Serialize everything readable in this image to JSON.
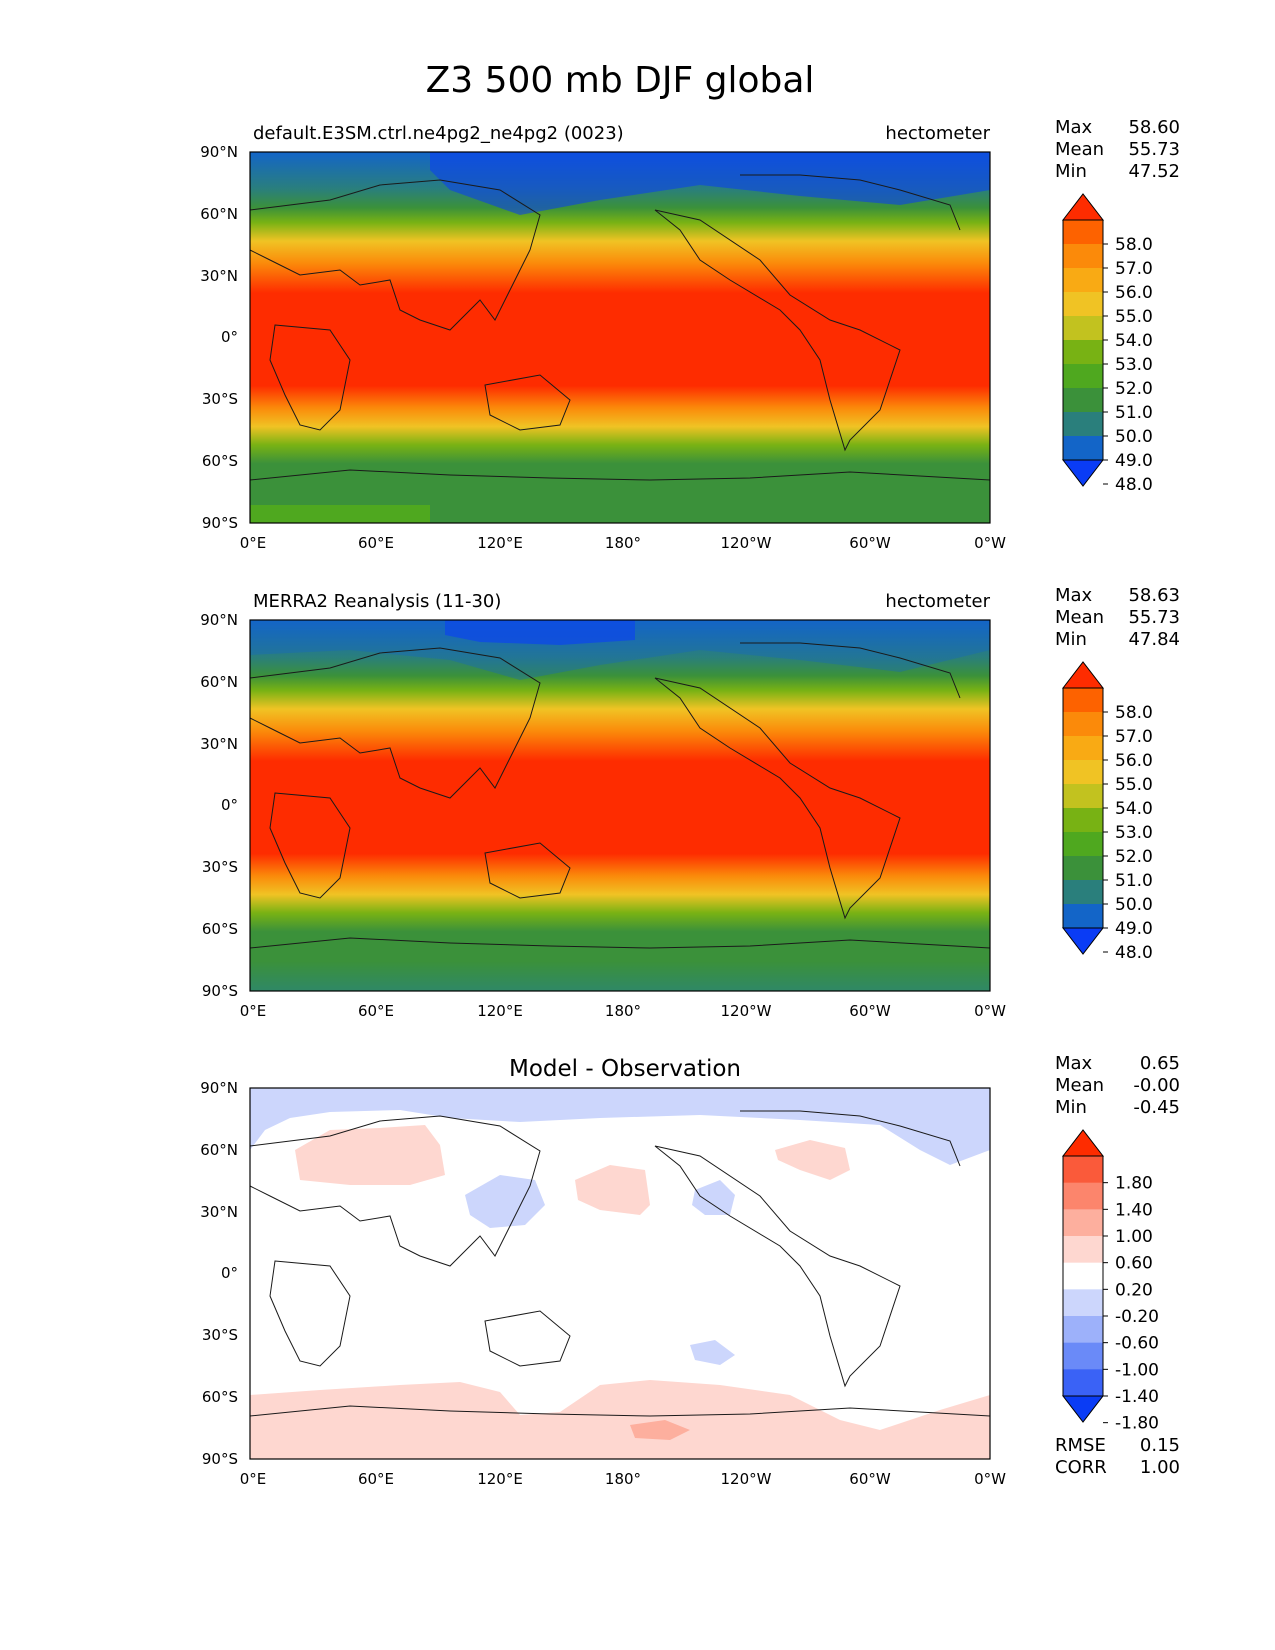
{
  "title": "Z3 500 mb DJF global",
  "x_ticks": [
    "0°E",
    "60°E",
    "120°E",
    "180°",
    "120°W",
    "60°W",
    "0°W"
  ],
  "y_ticks": [
    "90°N",
    "60°N",
    "30°N",
    "0°",
    "30°S",
    "60°S",
    "90°S"
  ],
  "panels": [
    {
      "id": "model",
      "left_title": "default.E3SM.ctrl.ne4pg2_ne4pg2 (0023)",
      "right_title": "hectometer",
      "center_title": "",
      "stats": [
        {
          "label": "Max",
          "value": "58.60"
        },
        {
          "label": "Mean",
          "value": "55.73"
        },
        {
          "label": "Min",
          "value": "47.52"
        }
      ],
      "colorbar": {
        "colors": [
          "#0a3cf5",
          "#1365c8",
          "#2a7f7c",
          "#3b913a",
          "#4fa81f",
          "#78b214",
          "#c2c21f",
          "#f0c324",
          "#f9aa14",
          "#fb8a0a",
          "#fd6200",
          "#fe2c00"
        ],
        "labels": [
          "58.0",
          "57.0",
          "56.0",
          "55.0",
          "54.0",
          "53.0",
          "52.0",
          "51.0",
          "50.0",
          "49.0",
          "48.0"
        ]
      },
      "bottom_stats": []
    },
    {
      "id": "obs",
      "left_title": "MERRA2 Reanalysis (11-30)",
      "right_title": "hectometer",
      "center_title": "",
      "stats": [
        {
          "label": "Max",
          "value": "58.63"
        },
        {
          "label": "Mean",
          "value": "55.73"
        },
        {
          "label": "Min",
          "value": "47.84"
        }
      ],
      "colorbar": {
        "colors": [
          "#0a3cf5",
          "#1365c8",
          "#2a7f7c",
          "#3b913a",
          "#4fa81f",
          "#78b214",
          "#c2c21f",
          "#f0c324",
          "#f9aa14",
          "#fb8a0a",
          "#fd6200",
          "#fe2c00"
        ],
        "labels": [
          "58.0",
          "57.0",
          "56.0",
          "55.0",
          "54.0",
          "53.0",
          "52.0",
          "51.0",
          "50.0",
          "49.0",
          "48.0"
        ]
      },
      "bottom_stats": []
    },
    {
      "id": "diff",
      "left_title": "",
      "right_title": "",
      "center_title": "Model - Observation",
      "stats": [
        {
          "label": "Max",
          "value": "0.65"
        },
        {
          "label": "Mean",
          "value": "-0.00"
        },
        {
          "label": "Min",
          "value": "-0.45"
        }
      ],
      "colorbar": {
        "colors": [
          "#0a3cf5",
          "#3a62f6",
          "#6a8af8",
          "#9db1fa",
          "#ccd6fc",
          "#ffffff",
          "#fed7d0",
          "#fdaf9e",
          "#fc856c",
          "#fa5a3a",
          "#fe2c00"
        ],
        "labels": [
          "1.80",
          "1.40",
          "1.00",
          "0.60",
          "0.20",
          "-0.20",
          "-0.60",
          "-1.00",
          "-1.40",
          "-1.80"
        ]
      },
      "bottom_stats": [
        {
          "label": "RMSE",
          "value": "0.15"
        },
        {
          "label": "CORR",
          "value": "1.00"
        }
      ]
    }
  ]
}
